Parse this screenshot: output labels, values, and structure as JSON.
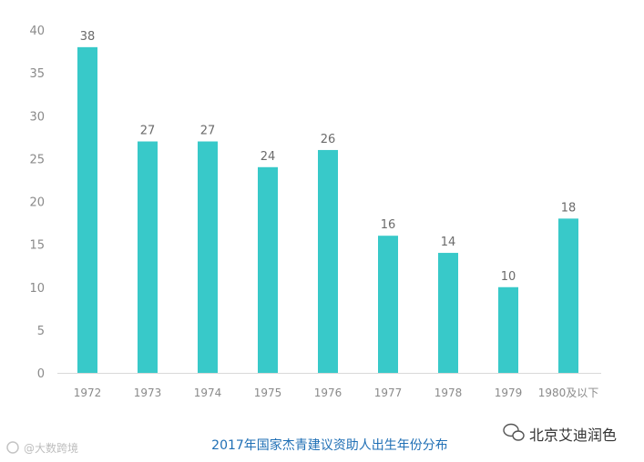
{
  "chart_data": {
    "type": "bar",
    "title": "2017年国家杰青建议资助人出生年份分布",
    "categories": [
      "1972",
      "1973",
      "1974",
      "1975",
      "1976",
      "1977",
      "1978",
      "1979",
      "1980及以下"
    ],
    "values": [
      38,
      27,
      27,
      24,
      26,
      16,
      14,
      10,
      18
    ],
    "ylim": [
      0,
      40
    ],
    "yticks": [
      0,
      5,
      10,
      15,
      20,
      25,
      30,
      35,
      40
    ],
    "xlabel": "",
    "ylabel": "",
    "grid": false,
    "bar_color": "#38c9c9"
  },
  "watermarks": {
    "left": "@大数跨境",
    "right": "北京艾迪润色"
  }
}
